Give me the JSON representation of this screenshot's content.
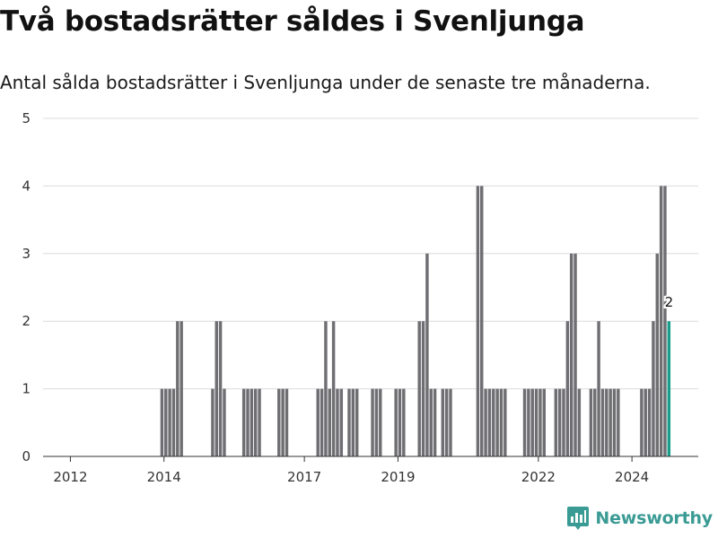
{
  "header": {
    "title": "Två bostadsrätter såldes i Svenljunga",
    "subtitle": "Antal sålda bostadsrätter i Svenljunga under de senaste tre månaderna."
  },
  "brand": {
    "name": "Newsworthy",
    "color": "#3a9b94",
    "icon": "newsworthy-logo-icon"
  },
  "colors": {
    "bar": "#6f6e73",
    "highlight": "#1a9e8c",
    "grid": "#dcdcdc"
  },
  "chart_data": {
    "type": "bar",
    "title": "Två bostadsrätter såldes i Svenljunga",
    "subtitle": "Antal sålda bostadsrätter i Svenljunga under de senaste tre månaderna.",
    "xlabel": "",
    "ylabel": "",
    "ylim": [
      0,
      5
    ],
    "yticks": [
      0,
      1,
      2,
      3,
      4,
      5
    ],
    "grid": true,
    "x_axis": "month",
    "x_range": [
      "2011-06",
      "2025-06"
    ],
    "xtick_labels": [
      "2012",
      "2014",
      "2017",
      "2019",
      "2022",
      "2024"
    ],
    "x": [
      "2013-12",
      "2014-01",
      "2014-02",
      "2014-03",
      "2014-04",
      "2014-05",
      "2015-01",
      "2015-02",
      "2015-03",
      "2015-04",
      "2015-09",
      "2015-10",
      "2015-11",
      "2015-12",
      "2016-01",
      "2016-06",
      "2016-07",
      "2016-08",
      "2017-04",
      "2017-05",
      "2017-06",
      "2017-07",
      "2017-08",
      "2017-09",
      "2017-10",
      "2017-12",
      "2018-01",
      "2018-02",
      "2018-06",
      "2018-07",
      "2018-08",
      "2018-12",
      "2019-01",
      "2019-02",
      "2019-06",
      "2019-07",
      "2019-08",
      "2019-09",
      "2019-10",
      "2019-12",
      "2020-01",
      "2020-02",
      "2020-09",
      "2020-10",
      "2020-11",
      "2020-12",
      "2021-01",
      "2021-02",
      "2021-03",
      "2021-04",
      "2021-09",
      "2021-10",
      "2021-11",
      "2021-12",
      "2022-01",
      "2022-02",
      "2022-05",
      "2022-06",
      "2022-07",
      "2022-08",
      "2022-09",
      "2022-10",
      "2022-11",
      "2023-02",
      "2023-03",
      "2023-04",
      "2023-05",
      "2023-06",
      "2023-07",
      "2023-08",
      "2023-09",
      "2024-03",
      "2024-04",
      "2024-05",
      "2024-06",
      "2024-07",
      "2024-08",
      "2024-09",
      "2024-10"
    ],
    "values": [
      1,
      1,
      1,
      1,
      2,
      2,
      1,
      2,
      2,
      1,
      1,
      1,
      1,
      1,
      1,
      1,
      1,
      1,
      1,
      1,
      2,
      1,
      2,
      1,
      1,
      1,
      1,
      1,
      1,
      1,
      1,
      1,
      1,
      1,
      2,
      2,
      3,
      1,
      1,
      1,
      1,
      1,
      4,
      4,
      1,
      1,
      1,
      1,
      1,
      1,
      1,
      1,
      1,
      1,
      1,
      1,
      1,
      1,
      1,
      2,
      3,
      3,
      1,
      1,
      1,
      2,
      1,
      1,
      1,
      1,
      1,
      1,
      1,
      1,
      2,
      3,
      4,
      4,
      2
    ],
    "highlight_last": true,
    "annotations": [
      {
        "x": "2024-10",
        "text": "2"
      }
    ]
  }
}
